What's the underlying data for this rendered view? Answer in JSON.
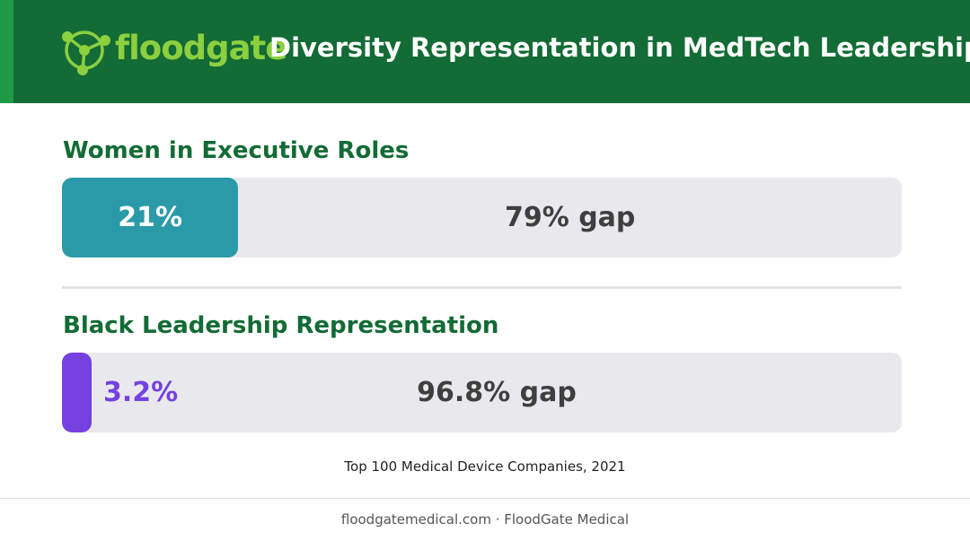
{
  "header": {
    "brand": "floodgate",
    "title": "Diversity Representation in MedTech Leadership"
  },
  "colors": {
    "header_bg": "#136b35",
    "header_accent": "#1f9a46",
    "brand_green": "#8ccf3f",
    "section_title": "#136b35",
    "track": "#e9e9ed",
    "women_fill": "#2a9aa8",
    "black_fill": "#7541e0"
  },
  "chart_data": {
    "type": "bar",
    "categories": [
      "Women in Executive Roles",
      "Black Leadership Representation"
    ],
    "values": [
      21,
      3.2
    ],
    "gaps": [
      79,
      96.8
    ],
    "unit": "%",
    "xlim": [
      0,
      100
    ],
    "bars": [
      {
        "label": "Women in Executive Roles",
        "value": 21,
        "value_text": "21%",
        "gap_text": "79% gap"
      },
      {
        "label": "Black Leadership Representation",
        "value": 3.2,
        "value_text": "3.2%",
        "gap_text": "96.8% gap"
      }
    ]
  },
  "caption": "Top 100 Medical Device Companies, 2021",
  "footer": "floodgatemedical.com · FloodGate Medical"
}
